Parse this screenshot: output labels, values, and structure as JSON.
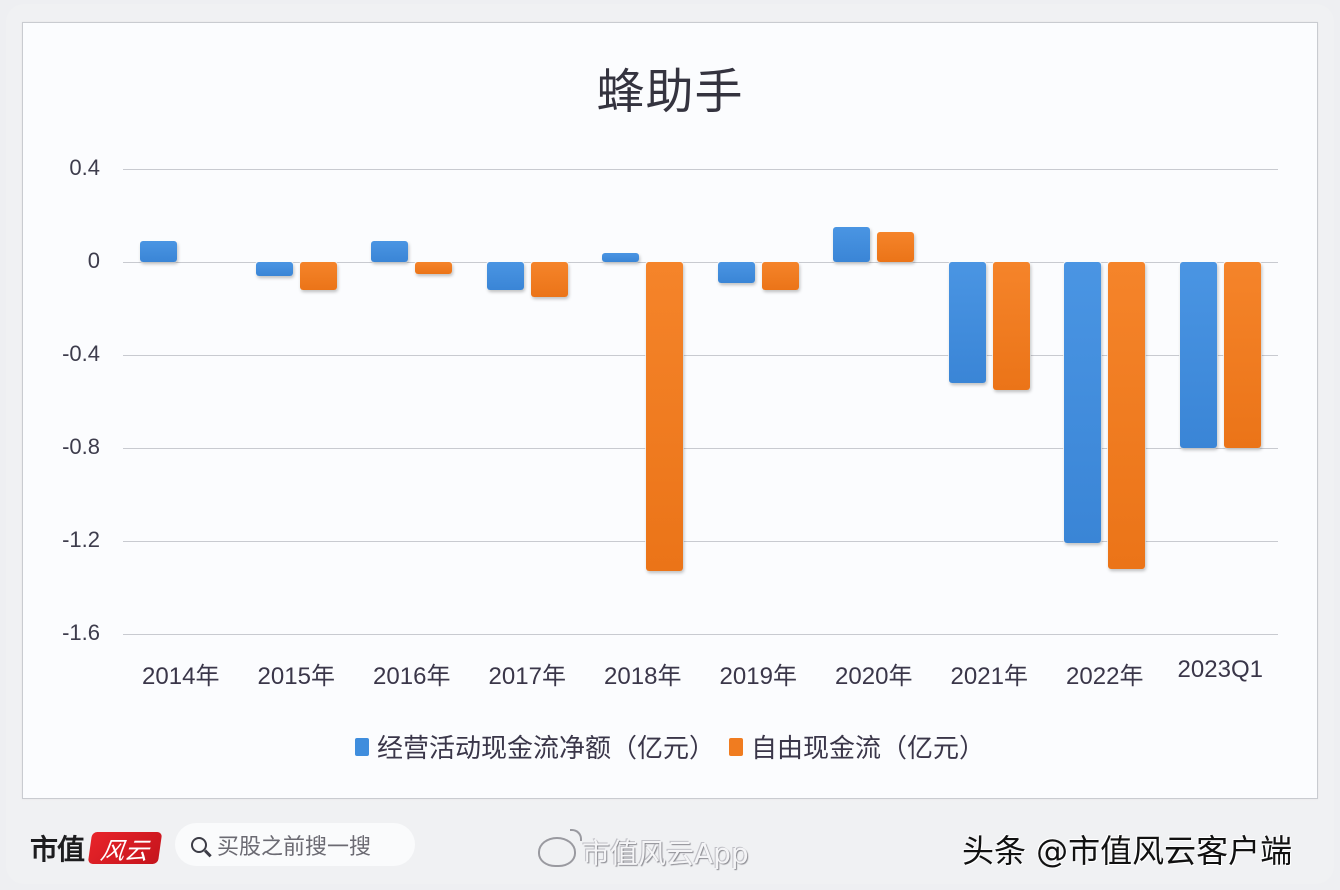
{
  "chart_data": {
    "type": "bar",
    "title": "蜂助手",
    "categories": [
      "2014年",
      "2015年",
      "2016年",
      "2017年",
      "2018年",
      "2019年",
      "2020年",
      "2021年",
      "2022年",
      "2023Q1"
    ],
    "series": [
      {
        "name": "经营活动现金流净额（亿元）",
        "color": "#3f8ddd",
        "values": [
          0.09,
          -0.06,
          0.09,
          -0.12,
          0.04,
          -0.09,
          0.15,
          -0.52,
          -1.21,
          -0.8
        ]
      },
      {
        "name": "自由现金流（亿元）",
        "color": "#f07c20",
        "values": [
          null,
          -0.12,
          -0.05,
          -0.15,
          -1.33,
          -0.12,
          0.13,
          -0.55,
          -1.32,
          -0.8
        ]
      }
    ],
    "xlabel": "",
    "ylabel": "",
    "ylim": [
      -1.6,
      0.4
    ],
    "yticks": [
      "0.4",
      "0",
      "-0.4",
      "-0.8",
      "-1.2",
      "-1.6"
    ],
    "grid": true,
    "legend_position": "bottom"
  },
  "footer": {
    "logo_text": "市值",
    "logo_badge": "风云",
    "search_placeholder": "买股之前搜一搜",
    "weibo_label": "市值风云App",
    "source_label": "头条 @市值风云客户端"
  }
}
